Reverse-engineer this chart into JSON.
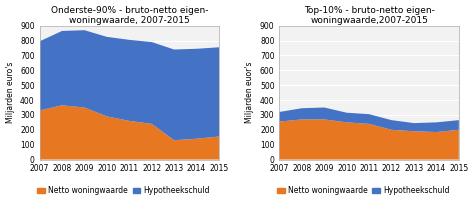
{
  "years": [
    2007,
    2008,
    2009,
    2010,
    2011,
    2012,
    2013,
    2014,
    2015
  ],
  "left_title": "Onderste-90% - bruto-netto eigen-\nwoningwaarde, 2007-2015",
  "left_netto": [
    330,
    365,
    350,
    290,
    260,
    240,
    130,
    140,
    155
  ],
  "left_hypo": [
    465,
    500,
    520,
    535,
    545,
    550,
    610,
    605,
    600
  ],
  "left_ylim": [
    0,
    900
  ],
  "left_yticks": [
    0,
    100,
    200,
    300,
    400,
    500,
    600,
    700,
    800,
    900
  ],
  "left_ylabel": "Miljarden euro's",
  "right_title": "Top-10% - bruto-netto eigen-\nwoningwaarde,2007-2015",
  "right_netto": [
    255,
    270,
    270,
    250,
    240,
    200,
    190,
    185,
    200
  ],
  "right_hypo": [
    65,
    75,
    80,
    65,
    65,
    65,
    55,
    65,
    65
  ],
  "right_ylim": [
    0,
    900
  ],
  "right_yticks": [
    0,
    100,
    200,
    300,
    400,
    500,
    600,
    700,
    800,
    900
  ],
  "right_ylabel": "Miljarden euor's",
  "color_netto": "#E87722",
  "color_hypo": "#4472C4",
  "bg_color": "#F2F2F2",
  "grid_color": "#FFFFFF",
  "legend_netto": "Netto woningwaarde",
  "legend_hypo": "Hypotheekschuld",
  "title_fontsize": 6.5,
  "label_fontsize": 5.5,
  "tick_fontsize": 5.5,
  "legend_fontsize": 5.5
}
